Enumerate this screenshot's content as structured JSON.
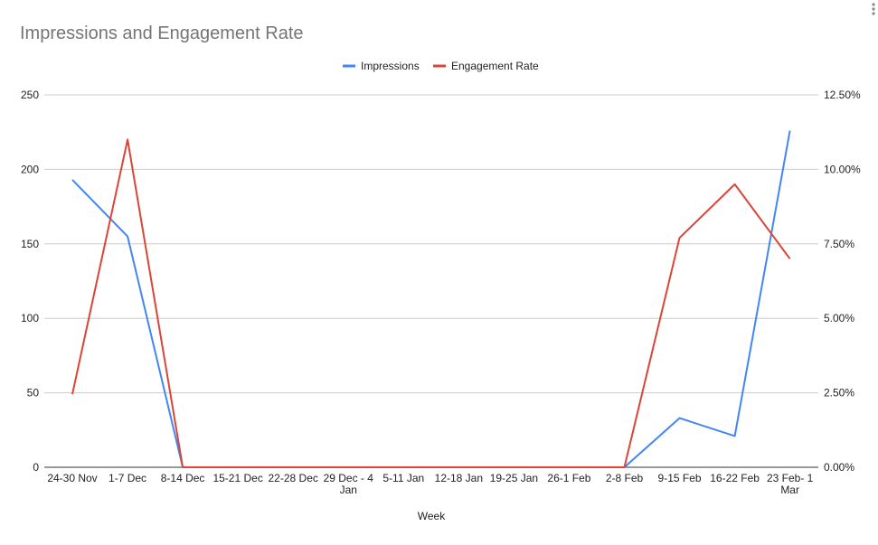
{
  "chart_data": {
    "type": "line",
    "title": "Impressions and Engagement Rate",
    "xlabel": "Week",
    "categories": [
      "24-30 Nov",
      "1-7 Dec",
      "8-14 Dec",
      "15-21 Dec",
      "22-28 Dec",
      "29 Dec - 4 Jan",
      "5-11 Jan",
      "12-18 Jan",
      "19-25 Jan",
      "26-1 Feb",
      "2-8 Feb",
      "9-15 Feb",
      "16-22 Feb",
      "23 Feb- 1 Mar"
    ],
    "category_lines": [
      [
        "24-30 Nov"
      ],
      [
        "1-7 Dec"
      ],
      [
        "8-14 Dec"
      ],
      [
        "15-21 Dec"
      ],
      [
        "22-28 Dec"
      ],
      [
        "29 Dec - 4",
        "Jan"
      ],
      [
        "5-11 Jan"
      ],
      [
        "12-18 Jan"
      ],
      [
        "19-25 Jan"
      ],
      [
        "26-1 Feb"
      ],
      [
        "2-8 Feb"
      ],
      [
        "9-15 Feb"
      ],
      [
        "16-22 Feb"
      ],
      [
        "23 Feb- 1",
        "Mar"
      ]
    ],
    "left_axis": {
      "ylim": [
        0,
        250
      ],
      "ticks": [
        "0",
        "50",
        "100",
        "150",
        "200",
        "250"
      ]
    },
    "right_axis": {
      "ylim": [
        0,
        12.5
      ],
      "ticks": [
        "0.00%",
        "2.50%",
        "5.00%",
        "7.50%",
        "10.00%",
        "12.50%"
      ]
    },
    "series": [
      {
        "name": "Impressions",
        "axis": "left",
        "color": "#4285f4",
        "values": [
          193,
          155,
          0,
          0,
          0,
          0,
          0,
          0,
          0,
          0,
          0,
          33,
          21,
          226
        ]
      },
      {
        "name": "Engagement Rate",
        "axis": "right",
        "color": "#db4437",
        "values": [
          2.45,
          11.0,
          0,
          0,
          0,
          0,
          0,
          0,
          0,
          0,
          0,
          7.7,
          9.5,
          7.0
        ]
      }
    ],
    "grid": true,
    "legend_position": "top-center"
  }
}
